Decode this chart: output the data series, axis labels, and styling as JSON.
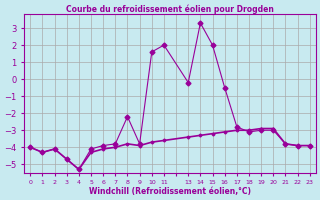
{
  "title": "Courbe du refroidissement éolien pour Drogden",
  "xlabel": "Windchill (Refroidissement éolien,°C)",
  "background_color": "#c8eaf0",
  "grid_color": "#aaaaaa",
  "line_color": "#990099",
  "ylim": [
    -5.5,
    3.8
  ],
  "xlim": [
    -0.5,
    23.5
  ],
  "yticks": [
    -5,
    -4,
    -3,
    -2,
    -1,
    0,
    1,
    2,
    3
  ],
  "series1_x": [
    0,
    1,
    2,
    3,
    4,
    5,
    6,
    7,
    8,
    9,
    10,
    11,
    13,
    14,
    15,
    16,
    17,
    18,
    19,
    20,
    21,
    22,
    23
  ],
  "series1_y": [
    -4.0,
    -4.3,
    -4.1,
    -4.7,
    -5.3,
    -4.1,
    -3.9,
    -3.8,
    -2.2,
    -3.8,
    1.6,
    2.0,
    -0.2,
    3.3,
    2.0,
    -0.5,
    -2.8,
    -3.1,
    -3.0,
    -3.0,
    -3.8,
    -3.9,
    -3.9
  ],
  "series2_x": [
    0,
    1,
    2,
    3,
    4,
    5,
    6,
    7,
    8,
    9,
    10,
    11,
    13,
    14,
    15,
    16,
    17,
    18,
    19,
    20,
    21,
    22,
    23
  ],
  "series2_y": [
    -4.0,
    -4.3,
    -4.1,
    -4.7,
    -5.3,
    -4.3,
    -4.1,
    -4.0,
    -3.8,
    -3.9,
    -3.7,
    -3.6,
    -3.4,
    -3.3,
    -3.2,
    -3.1,
    -3.0,
    -3.0,
    -2.9,
    -2.9,
    -3.8,
    -3.9,
    -3.9
  ]
}
